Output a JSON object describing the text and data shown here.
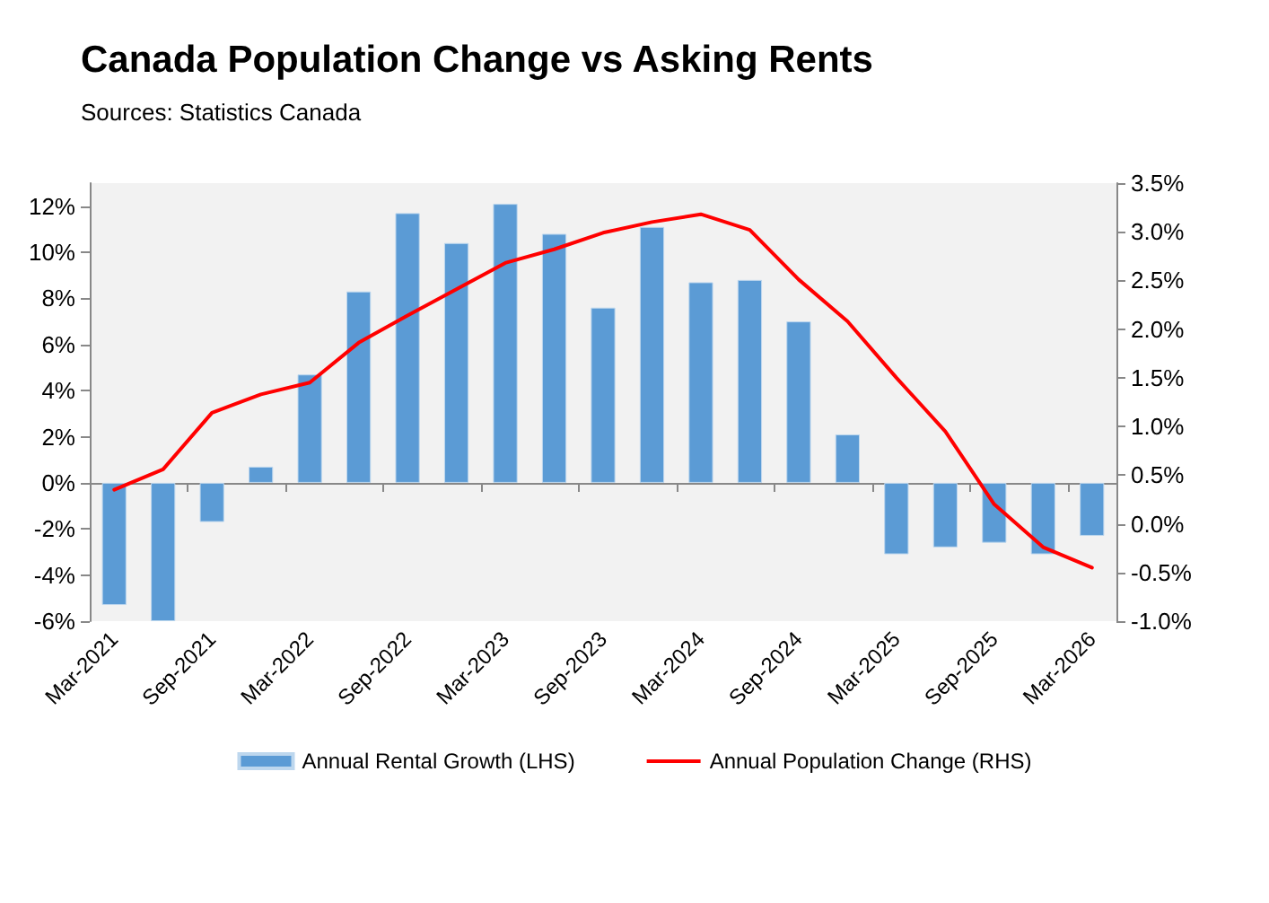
{
  "chart_data": {
    "type": "bar",
    "title": "Canada Population Change vs Asking Rents",
    "subtitle": "Sources: Statistics Canada",
    "categories": [
      "Mar-2021",
      null,
      "Sep-2021",
      null,
      "Mar-2022",
      null,
      "Sep-2022",
      null,
      "Mar-2023",
      null,
      "Sep-2023",
      null,
      "Mar-2024",
      null,
      "Sep-2024",
      null,
      "Mar-2025",
      null,
      "Sep-2025",
      null,
      "Mar-2026"
    ],
    "series": [
      {
        "name": "Annual Rental Growth (LHS)",
        "color": "#5b9bd5",
        "values": [
          -5.3,
          -6.0,
          -1.7,
          0.7,
          4.7,
          8.3,
          11.7,
          10.4,
          12.1,
          10.8,
          7.6,
          11.1,
          8.7,
          8.8,
          7.0,
          2.1,
          -3.1,
          -2.8,
          -2.6,
          -3.1,
          -2.3
        ]
      },
      {
        "name": "Annual Population Change (RHS)",
        "type": "line",
        "axis": "y2",
        "color": "#ff0000",
        "values": [
          0.35,
          0.56,
          1.14,
          1.33,
          1.45,
          1.86,
          2.14,
          2.41,
          2.68,
          2.82,
          2.99,
          3.1,
          3.18,
          3.02,
          2.51,
          2.08,
          1.5,
          0.95,
          0.2,
          -0.24,
          -0.45
        ]
      }
    ],
    "ylim": [
      -6,
      13
    ],
    "yticks": [
      {
        "value": -6,
        "label": "-6%"
      },
      {
        "value": -4,
        "label": "-4%"
      },
      {
        "value": -2,
        "label": "-2%"
      },
      {
        "value": 0,
        "label": "0%"
      },
      {
        "value": 2,
        "label": "2%"
      },
      {
        "value": 4,
        "label": "4%"
      },
      {
        "value": 6,
        "label": "6%"
      },
      {
        "value": 8,
        "label": "8%"
      },
      {
        "value": 10,
        "label": "10%"
      },
      {
        "value": 12,
        "label": "12%"
      }
    ],
    "y2lim": [
      -1,
      3.5
    ],
    "y2ticks": [
      {
        "value": -1,
        "label": "-1.0%"
      },
      {
        "value": -0.5,
        "label": "-0.5%"
      },
      {
        "value": 0,
        "label": "0.0%"
      },
      {
        "value": 0.5,
        "label": "0.5%"
      },
      {
        "value": 1,
        "label": "1.0%"
      },
      {
        "value": 1.5,
        "label": "1.5%"
      },
      {
        "value": 2,
        "label": "2.0%"
      },
      {
        "value": 2.5,
        "label": "2.5%"
      },
      {
        "value": 3,
        "label": "3.0%"
      },
      {
        "value": 3.5,
        "label": "3.5%"
      }
    ],
    "legend": "bottom",
    "marker": "none"
  }
}
